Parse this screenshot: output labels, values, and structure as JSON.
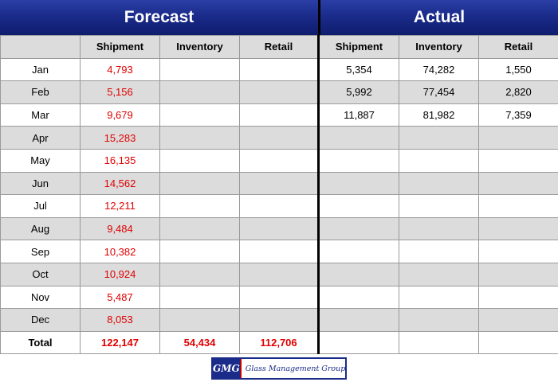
{
  "header": {
    "forecast": "Forecast",
    "actual": "Actual"
  },
  "columns": [
    "",
    "Shipment",
    "Inventory",
    "Retail",
    "Shipment",
    "Inventory",
    "Retail"
  ],
  "rows": [
    {
      "month": "Jan",
      "forecast": [
        "4,793",
        "",
        ""
      ],
      "actual": [
        "5,354",
        "74,282",
        "1,550"
      ]
    },
    {
      "month": "Feb",
      "forecast": [
        "5,156",
        "",
        ""
      ],
      "actual": [
        "5,992",
        "77,454",
        "2,820"
      ]
    },
    {
      "month": "Mar",
      "forecast": [
        "9,679",
        "",
        ""
      ],
      "actual": [
        "11,887",
        "81,982",
        "7,359"
      ]
    },
    {
      "month": "Apr",
      "forecast": [
        "15,283",
        "",
        ""
      ],
      "actual": [
        "",
        "",
        ""
      ]
    },
    {
      "month": "May",
      "forecast": [
        "16,135",
        "",
        ""
      ],
      "actual": [
        "",
        "",
        ""
      ]
    },
    {
      "month": "Jun",
      "forecast": [
        "14,562",
        "",
        ""
      ],
      "actual": [
        "",
        "",
        ""
      ]
    },
    {
      "month": "Jul",
      "forecast": [
        "12,211",
        "",
        ""
      ],
      "actual": [
        "",
        "",
        ""
      ]
    },
    {
      "month": "Aug",
      "forecast": [
        "9,484",
        "",
        ""
      ],
      "actual": [
        "",
        "",
        ""
      ]
    },
    {
      "month": "Sep",
      "forecast": [
        "10,382",
        "",
        ""
      ],
      "actual": [
        "",
        "",
        ""
      ]
    },
    {
      "month": "Oct",
      "forecast": [
        "10,924",
        "",
        ""
      ],
      "actual": [
        "",
        "",
        ""
      ]
    },
    {
      "month": "Nov",
      "forecast": [
        "5,487",
        "",
        ""
      ],
      "actual": [
        "",
        "",
        ""
      ]
    },
    {
      "month": "Dec",
      "forecast": [
        "8,053",
        "",
        ""
      ],
      "actual": [
        "",
        "",
        ""
      ]
    }
  ],
  "total": {
    "label": "Total",
    "forecast": [
      "122,147",
      "54,434",
      "112,706"
    ],
    "actual": [
      "",
      "",
      ""
    ]
  },
  "logo": {
    "mark": "GMG",
    "name": "Glass Management Group"
  },
  "colors": {
    "header_bg": "#1a2b8a",
    "forecast_value": "#e00000",
    "shaded_row": "#dcdcdc"
  }
}
